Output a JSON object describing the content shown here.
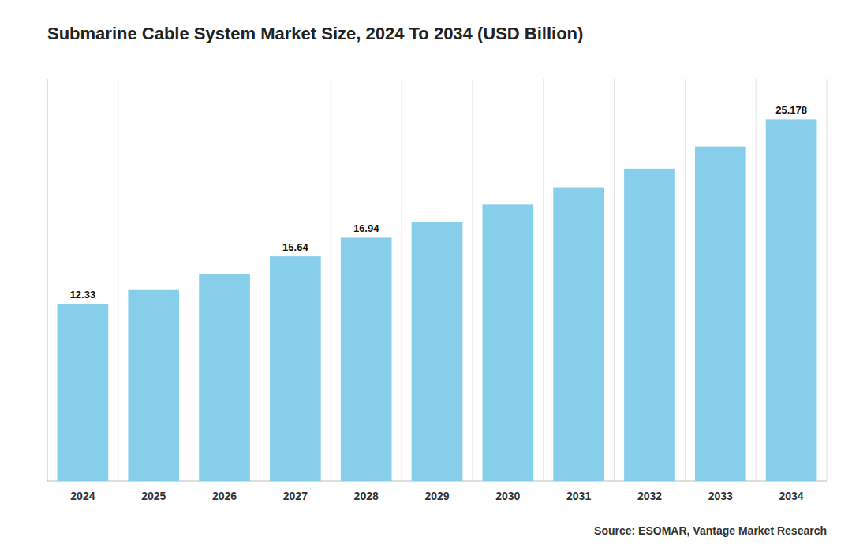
{
  "chart_data": {
    "type": "bar",
    "title": "Submarine Cable System Market Size, 2024 To 2034 (USD Billion)",
    "categories": [
      "2024",
      "2025",
      "2026",
      "2027",
      "2028",
      "2029",
      "2030",
      "2031",
      "2032",
      "2033",
      "2034"
    ],
    "values": [
      12.33,
      13.3,
      14.4,
      15.64,
      16.94,
      18.05,
      19.25,
      20.45,
      21.75,
      23.3,
      25.178
    ],
    "value_labels": [
      "12.33",
      null,
      null,
      "15.64",
      "16.94",
      null,
      null,
      null,
      null,
      null,
      "25.178"
    ],
    "data_labels": true,
    "color": "#87CEEB",
    "ylim": [
      0,
      28
    ],
    "tick_labels": "x",
    "grid": true,
    "source": "Source: ESOMAR, Vantage Market Research"
  }
}
